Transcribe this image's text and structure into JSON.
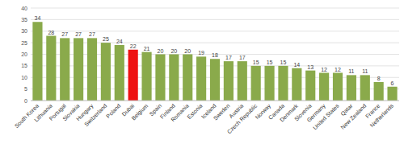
{
  "chart_data": {
    "type": "bar",
    "categories": [
      "South Korea",
      "Lithuania",
      "Portugal",
      "Slovakia",
      "Hungary",
      "Switzerland",
      "Poland",
      "Dubai",
      "Belgium",
      "Spain",
      "Finland",
      "Romania",
      "Estonia",
      "Iceland",
      "Sweden",
      "Austria",
      "Czech Republic",
      "Norway",
      "Canada",
      "Denmark",
      "Slovenia",
      "Germany",
      "United States",
      "Qatar",
      "New Zealand",
      "France",
      "Netherlands"
    ],
    "values": [
      34,
      28,
      27,
      27,
      27,
      25,
      24,
      22,
      21,
      20,
      20,
      20,
      19,
      18,
      17,
      17,
      15,
      15,
      15,
      14,
      13,
      12,
      12,
      11,
      11,
      8,
      6
    ],
    "colors": [
      "#8aaa4b",
      "#8aaa4b",
      "#8aaa4b",
      "#8aaa4b",
      "#8aaa4b",
      "#8aaa4b",
      "#8aaa4b",
      "#ee1111",
      "#8aaa4b",
      "#8aaa4b",
      "#8aaa4b",
      "#8aaa4b",
      "#8aaa4b",
      "#8aaa4b",
      "#8aaa4b",
      "#8aaa4b",
      "#8aaa4b",
      "#8aaa4b",
      "#8aaa4b",
      "#8aaa4b",
      "#8aaa4b",
      "#8aaa4b",
      "#8aaa4b",
      "#8aaa4b",
      "#8aaa4b",
      "#8aaa4b",
      "#8aaa4b"
    ],
    "ylim": [
      0,
      40
    ],
    "yticks": [
      0,
      5,
      10,
      15,
      20,
      25,
      30,
      35,
      40
    ],
    "grid": true,
    "data_labels": true
  }
}
